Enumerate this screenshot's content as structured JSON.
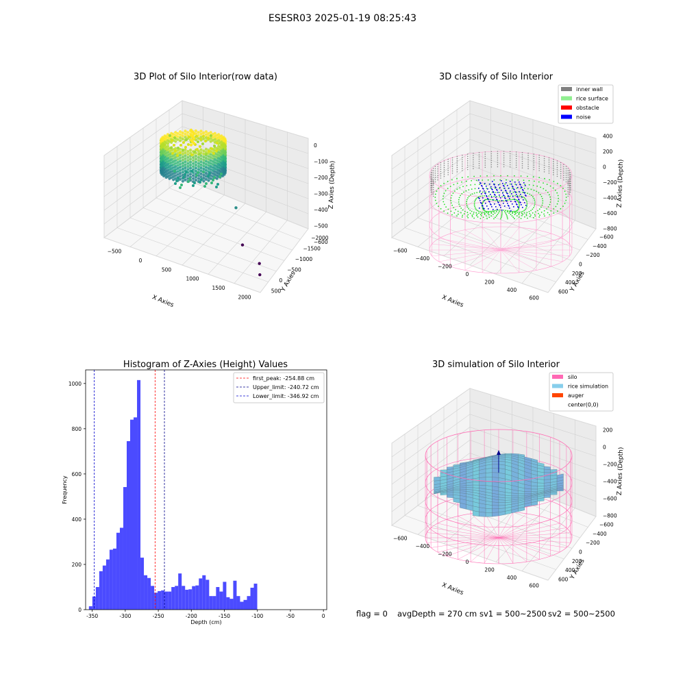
{
  "suptitle": "ESESR03 2025-01-19 08:25:43",
  "chart_data": [
    {
      "type": "scatter3d",
      "title": "3D Plot of Silo Interior(row data)",
      "xlabel": "X Axies",
      "ylabel": "Y Axies",
      "zlabel": "Z Axies (Depth)",
      "xticks": [
        "−500",
        "0",
        "500",
        "1000",
        "1500",
        "2000"
      ],
      "yticks": [
        "500",
        "0",
        "−500",
        "−1000",
        "−1500",
        "−2000"
      ],
      "zticks": [
        "0",
        "−100",
        "−200",
        "−300",
        "−400",
        "−500",
        "−600"
      ],
      "outlier_points": [
        {
          "x": 1250,
          "y": -700,
          "z": -380
        },
        {
          "x": 1500,
          "y": -1150,
          "z": -580
        },
        {
          "x": 1900,
          "y": -1500,
          "z": -600
        },
        {
          "x": 2000,
          "y": -1800,
          "z": -620
        }
      ]
    },
    {
      "type": "scatter3d",
      "title": "3D classify of Silo Interior",
      "xlabel": "X Axies",
      "ylabel": "Y Axies",
      "zlabel": "Z Axies (Depth)",
      "xticks": [
        "−600",
        "−400",
        "−200",
        "0",
        "200",
        "400",
        "600"
      ],
      "yticks": [
        "600",
        "400",
        "200",
        "0",
        "−200",
        "−400",
        "−600"
      ],
      "zticks": [
        "400",
        "200",
        "0",
        "−200",
        "−400",
        "−600",
        "−800"
      ],
      "legend": [
        {
          "label": "inner wall",
          "color": "#808080"
        },
        {
          "label": "rice surface",
          "color": "#90ee90"
        },
        {
          "label": "obstacle",
          "color": "#ff0000"
        },
        {
          "label": "noise",
          "color": "#0000ff"
        }
      ],
      "legend_position": "top-right"
    },
    {
      "type": "bar",
      "title": "Histogram of Z-Axies (Height) Values",
      "xlabel": "Depth (cm)",
      "ylabel": "Frequency",
      "xlim": [
        -360,
        5
      ],
      "ylim": [
        0,
        1060
      ],
      "xticks": [
        -350,
        -300,
        -250,
        -200,
        -150,
        -100,
        -50,
        0
      ],
      "yticks": [
        0,
        200,
        400,
        600,
        800,
        1000
      ],
      "bin_start": -355,
      "bin_width": 5.2,
      "counts": [
        15,
        58,
        100,
        170,
        195,
        222,
        265,
        270,
        340,
        362,
        542,
        745,
        840,
        850,
        1015,
        230,
        152,
        140,
        105,
        75,
        82,
        85,
        80,
        80,
        100,
        105,
        160,
        105,
        88,
        90,
        104,
        107,
        138,
        152,
        132,
        60,
        60,
        100,
        80,
        123,
        55,
        48,
        128,
        60,
        35,
        43,
        60,
        97,
        115
      ],
      "bar_color": "#4b4bff",
      "vlines": [
        {
          "x": -254.88,
          "color": "#ff0000",
          "label": "first_peak: -254.88 cm"
        },
        {
          "x": -240.72,
          "color": "#00008b",
          "label": "Upper_limit: -240.72 cm"
        },
        {
          "x": -346.92,
          "color": "#0000cd",
          "label": "Lower_limit: -346.92 cm"
        }
      ],
      "legend_position": "top-right"
    },
    {
      "type": "surface3d",
      "title": "3D simulation of Silo Interior",
      "xlabel": "X Axies",
      "ylabel": "Y Axies",
      "zlabel": "Z Axies (Depth)",
      "xticks": [
        "−600",
        "−400",
        "−200",
        "0",
        "200",
        "400",
        "600"
      ],
      "yticks": [
        "600",
        "400",
        "200",
        "0",
        "−200",
        "−400",
        "−600"
      ],
      "zticks": [
        "200",
        "0",
        "−200",
        "−400",
        "−600",
        "−800"
      ],
      "legend": [
        {
          "label": "silo",
          "color": "#ff69b4"
        },
        {
          "label": "rice simulation",
          "color": "#87ceeb"
        },
        {
          "label": "auger",
          "color": "#ff4500"
        },
        {
          "label": "center(0,0)",
          "color": "#ffffff"
        }
      ],
      "legend_position": "top-right"
    }
  ],
  "status": {
    "flag": "flag = 0",
    "avg_depth": "avgDepth = 270 cm",
    "sv1": "sv1 = 500~2500",
    "sv2": "sv2 = 500~2500"
  }
}
